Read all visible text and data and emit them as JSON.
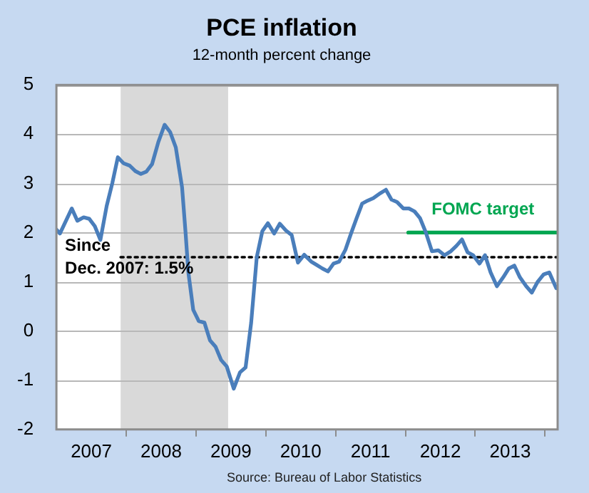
{
  "chart_data": {
    "type": "line",
    "title": "PCE inflation",
    "subtitle": "12-month percent change",
    "annotations": [
      "Source: Bureau of Labor Statistics"
    ],
    "xlim": [
      2007,
      2014.18
    ],
    "xticks": [
      {
        "value": 2007.5,
        "label": "2007"
      },
      {
        "value": 2008,
        "label": null
      },
      {
        "value": 2008.5,
        "label": "2008"
      },
      {
        "value": 2009,
        "label": null
      },
      {
        "value": 2009.5,
        "label": "2009"
      },
      {
        "value": 2010,
        "label": null
      },
      {
        "value": 2010.5,
        "label": "2010"
      },
      {
        "value": 2011,
        "label": null
      },
      {
        "value": 2011.5,
        "label": "2011"
      },
      {
        "value": 2012,
        "label": null
      },
      {
        "value": 2012.5,
        "label": "2012"
      },
      {
        "value": 2013,
        "label": null
      },
      {
        "value": 2013.5,
        "label": "2013"
      },
      {
        "value": 2014,
        "label": null
      }
    ],
    "ylim": [
      -2,
      5
    ],
    "yticks": [
      -2,
      -1,
      0,
      1,
      2,
      3,
      4,
      5
    ],
    "grid": "y",
    "legend": false,
    "bands": [
      {
        "axis": "x",
        "from": 2007.92,
        "to": 2009.46,
        "color": "#d9d9d9"
      }
    ],
    "series": [
      {
        "color": "#4a7ebb",
        "x": [
          2007.0,
          2007.05,
          2007.22,
          2007.3,
          2007.39,
          2007.47,
          2007.55,
          2007.63,
          2007.72,
          2007.8,
          2007.88,
          2007.96,
          2008.05,
          2008.13,
          2008.21,
          2008.29,
          2008.37,
          2008.46,
          2008.55,
          2008.63,
          2008.71,
          2008.8,
          2008.85,
          2008.89,
          2008.96,
          2009.04,
          2009.12,
          2009.2,
          2009.28,
          2009.36,
          2009.44,
          2009.54,
          2009.63,
          2009.71,
          2009.79,
          2009.87,
          2009.95,
          2010.03,
          2010.12,
          2010.2,
          2010.29,
          2010.37,
          2010.46,
          2010.55,
          2010.65,
          2010.73,
          2010.81,
          2010.89,
          2010.97,
          2011.05,
          2011.14,
          2011.22,
          2011.3,
          2011.38,
          2011.46,
          2011.54,
          2011.64,
          2011.72,
          2011.8,
          2011.88,
          2011.97,
          2012.05,
          2012.13,
          2012.21,
          2012.29,
          2012.38,
          2012.47,
          2012.56,
          2012.65,
          2012.73,
          2012.81,
          2012.89,
          2012.97,
          2013.06,
          2013.14,
          2013.22,
          2013.31,
          2013.4,
          2013.48,
          2013.56,
          2013.64,
          2013.73,
          2013.81,
          2013.89,
          2013.98,
          2014.06,
          2014.16
        ],
        "values": [
          2.06,
          1.98,
          2.49,
          2.24,
          2.31,
          2.28,
          2.13,
          1.85,
          2.54,
          3.0,
          3.53,
          3.41,
          3.36,
          3.25,
          3.19,
          3.24,
          3.39,
          3.84,
          4.19,
          4.04,
          3.73,
          2.92,
          2.0,
          1.19,
          0.43,
          0.2,
          0.17,
          -0.19,
          -0.32,
          -0.59,
          -0.72,
          -1.17,
          -0.84,
          -0.74,
          0.17,
          1.5,
          2.03,
          2.19,
          1.98,
          2.18,
          2.04,
          1.95,
          1.39,
          1.55,
          1.41,
          1.34,
          1.27,
          1.21,
          1.37,
          1.41,
          1.65,
          1.98,
          2.29,
          2.59,
          2.65,
          2.7,
          2.8,
          2.87,
          2.67,
          2.62,
          2.49,
          2.49,
          2.43,
          2.29,
          2.01,
          1.62,
          1.64,
          1.54,
          1.62,
          1.73,
          1.86,
          1.6,
          1.54,
          1.37,
          1.54,
          1.19,
          0.91,
          1.09,
          1.27,
          1.33,
          1.09,
          0.91,
          0.78,
          0.99,
          1.15,
          1.19,
          0.87
        ]
      },
      {
        "name": "Since Dec. 2007: 1.5%",
        "color": "#000000",
        "line_style": "dotted",
        "x": [
          2007.92,
          2014.18
        ],
        "values": [
          1.5,
          1.5
        ]
      },
      {
        "name": "FOMC target",
        "color": "#00a651",
        "x": [
          2012.04,
          2014.18
        ],
        "values": [
          2,
          2
        ]
      }
    ]
  }
}
